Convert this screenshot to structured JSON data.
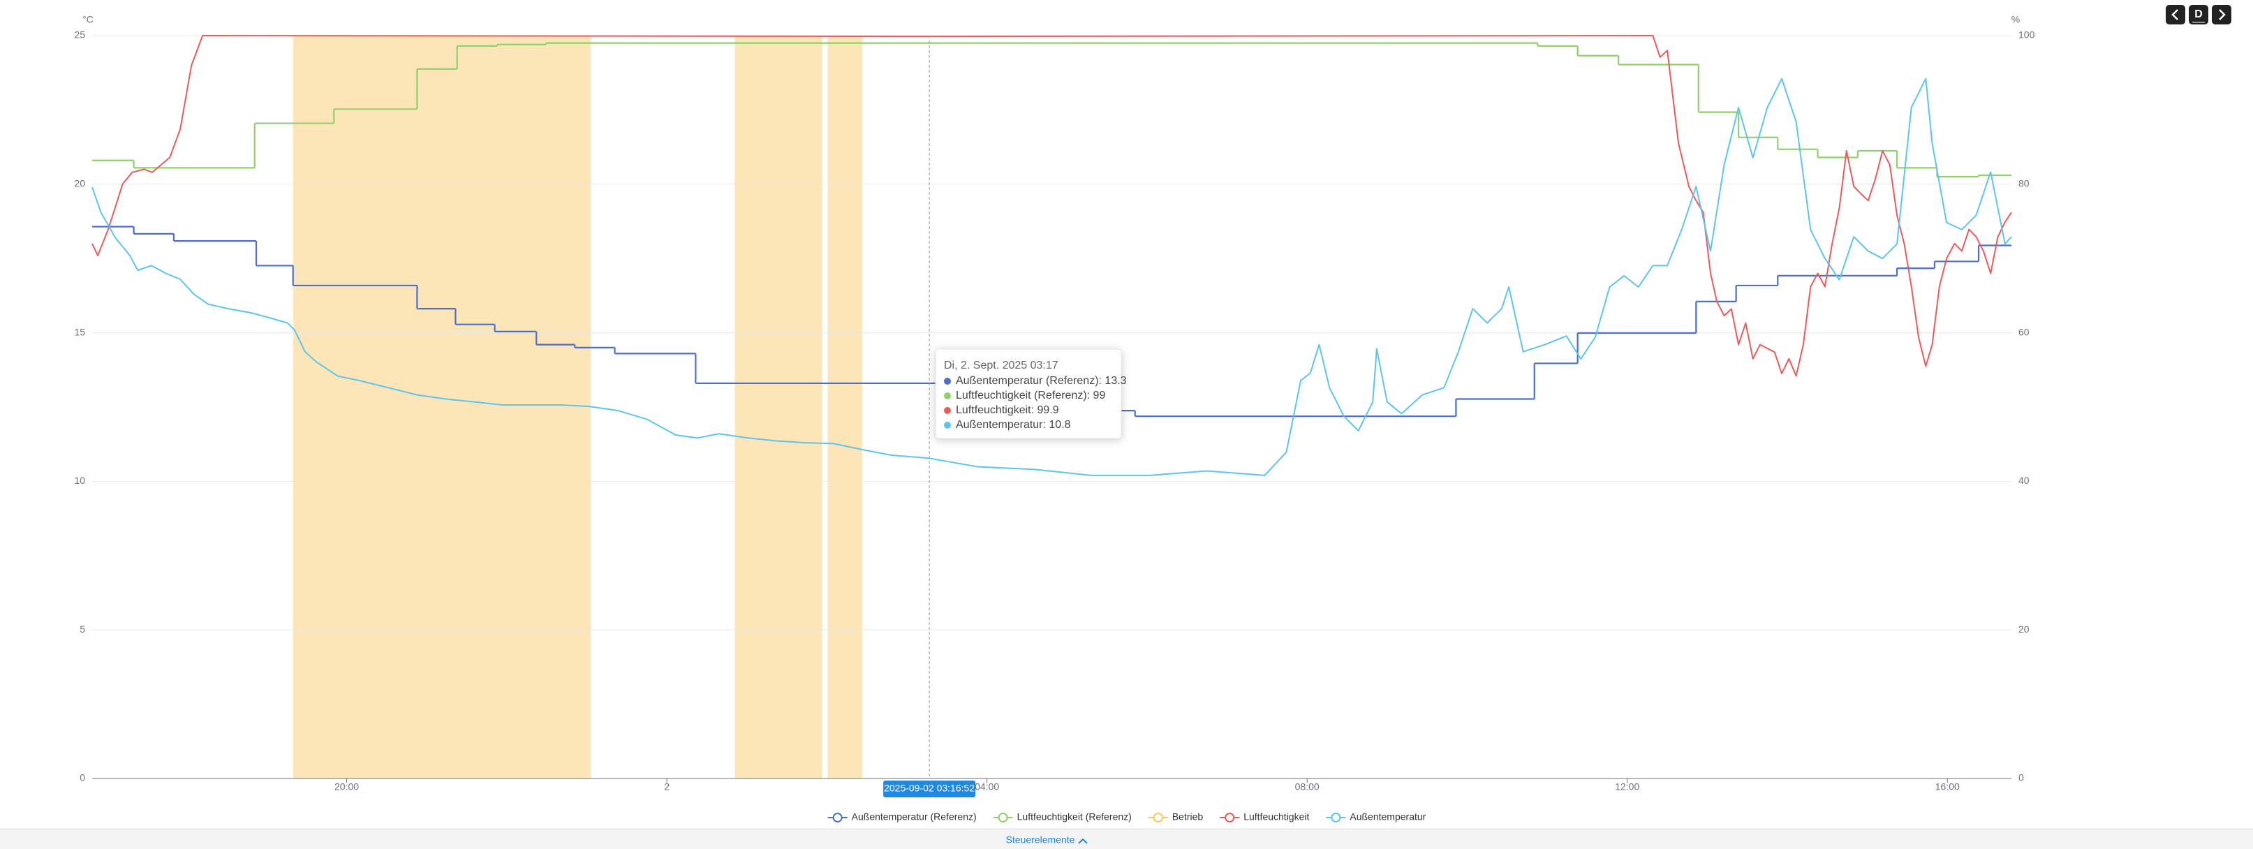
{
  "chart_data": {
    "type": "line",
    "y_unit": "°C",
    "y2_unit": "%",
    "xlim": [
      16.82,
      40.8
    ],
    "xticks": [
      {
        "value": 20,
        "label": "20:00"
      },
      {
        "value": 24,
        "label": "2"
      },
      {
        "value": 28,
        "label": "04:00"
      },
      {
        "value": 32,
        "label": "08:00"
      },
      {
        "value": 36,
        "label": "12:00"
      },
      {
        "value": 40,
        "label": "16:00"
      }
    ],
    "ylim": [
      0,
      25
    ],
    "yticks": [
      0,
      5,
      10,
      15,
      20,
      25
    ],
    "y2lim": [
      0,
      100
    ],
    "y2ticks": [
      0,
      20,
      40,
      60,
      80,
      100
    ],
    "grid": true,
    "series": [
      {
        "name": "Außentemperatur (Referenz)",
        "color": "#4a6fd0",
        "axis": "y",
        "step": true,
        "x": [
          16.82,
          17.34,
          17.84,
          18.87,
          19.33,
          20.88,
          21.36,
          21.85,
          22.37,
          22.85,
          23.35,
          24.36,
          29.5,
          29.85,
          33.86,
          34.84,
          35.38,
          36.86,
          37.36,
          37.88,
          39.37,
          39.84,
          40.39,
          40.8
        ],
        "values": [
          18.57,
          18.33,
          18.09,
          17.26,
          16.59,
          15.81,
          15.28,
          15.04,
          14.6,
          14.5,
          14.3,
          13.3,
          12.38,
          12.19,
          12.77,
          13.97,
          14.99,
          16.05,
          16.59,
          16.92,
          17.17,
          17.4,
          17.94,
          17.94
        ]
      },
      {
        "name": "Luftfeuchtigkeit (Referenz)",
        "color": "#8fd16a",
        "axis": "y2",
        "step": true,
        "x": [
          16.82,
          17.34,
          18.85,
          19.84,
          20.88,
          21.38,
          21.88,
          22.49,
          34.88,
          35.38,
          35.89,
          36.89,
          37.39,
          37.88,
          38.38,
          38.88,
          39.37,
          39.87,
          40.39,
          40.8
        ],
        "values": [
          83.2,
          82.2,
          88.2,
          90.1,
          95.5,
          98.6,
          98.8,
          99,
          98.6,
          97.3,
          96.1,
          89.7,
          86.3,
          84.7,
          83.6,
          84.5,
          82.2,
          81,
          81.2,
          81.2
        ]
      },
      {
        "name": "Betrieb",
        "color": "#fac858",
        "band_color": "#fce6b8",
        "bands": [
          [
            19.33,
            23.05
          ],
          [
            24.85,
            25.94
          ],
          [
            26.01,
            26.44
          ]
        ]
      },
      {
        "name": "Luftfeuchtigkeit",
        "color": "#ee5a5a",
        "axis": "y2",
        "x": [
          16.82,
          16.89,
          17.02,
          17.2,
          17.32,
          17.47,
          17.57,
          17.68,
          17.79,
          17.92,
          18.06,
          18.2,
          27.28,
          36.32,
          36.41,
          36.5,
          36.64,
          36.77,
          36.86,
          36.95,
          37.04,
          37.12,
          37.21,
          37.3,
          37.39,
          37.48,
          37.57,
          37.66,
          37.84,
          37.93,
          38.02,
          38.11,
          38.2,
          38.29,
          38.38,
          38.47,
          38.56,
          38.65,
          38.74,
          38.83,
          38.92,
          39.01,
          39.1,
          39.19,
          39.28,
          39.37,
          39.46,
          39.55,
          39.64,
          39.73,
          39.81,
          39.9,
          39.99,
          40.09,
          40.18,
          40.27,
          40.36,
          40.45,
          40.54,
          40.63,
          40.72,
          40.8
        ],
        "values": [
          72,
          70.4,
          73.9,
          80,
          81.6,
          82,
          81.6,
          82.6,
          83.6,
          87.4,
          96,
          100,
          99.9,
          100,
          97.1,
          98,
          85.5,
          79.7,
          77.8,
          76.2,
          68,
          64.2,
          62.3,
          63.2,
          58.4,
          61.3,
          56.5,
          58.4,
          57.4,
          54.5,
          56.5,
          54.2,
          58.4,
          66.2,
          68,
          66.2,
          72,
          76.8,
          84.5,
          79.7,
          78.7,
          77.8,
          80.7,
          84.5,
          82.6,
          75.8,
          72,
          66.2,
          59.4,
          55.5,
          58.4,
          66.2,
          70,
          72,
          71,
          73.9,
          72.9,
          71,
          68,
          72.9,
          74.9,
          76.2
        ]
      },
      {
        "name": "Außentemperatur",
        "color": "#5bc4ef",
        "axis": "y",
        "x": [
          16.82,
          16.93,
          17.11,
          17.29,
          17.39,
          17.56,
          17.74,
          17.92,
          18.09,
          18.27,
          18.54,
          18.81,
          19.08,
          19.26,
          19.35,
          19.48,
          19.62,
          19.89,
          20.16,
          20.52,
          20.88,
          21.24,
          21.6,
          21.95,
          22.31,
          22.67,
          23.03,
          23.39,
          23.75,
          24.11,
          24.38,
          24.65,
          25.01,
          25.37,
          25.72,
          26.08,
          26.44,
          26.8,
          27.27,
          27.88,
          28.6,
          29.3,
          30.03,
          30.75,
          31.47,
          31.74,
          31.92,
          32.04,
          32.15,
          32.28,
          32.46,
          32.64,
          32.82,
          32.87,
          33.0,
          33.18,
          33.44,
          33.71,
          33.89,
          34.07,
          34.25,
          34.43,
          34.52,
          34.7,
          34.97,
          35.24,
          35.42,
          35.6,
          35.78,
          35.96,
          36.14,
          36.32,
          36.5,
          36.68,
          36.86,
          37.04,
          37.21,
          37.39,
          37.57,
          37.75,
          37.93,
          38.11,
          38.29,
          38.47,
          38.65,
          38.83,
          39.01,
          39.19,
          39.37,
          39.55,
          39.73,
          39.81,
          39.99,
          40.18,
          40.36,
          40.54,
          40.72,
          40.8
        ],
        "values": [
          19.9,
          19.05,
          18.2,
          17.6,
          17.1,
          17.26,
          17.0,
          16.8,
          16.3,
          15.96,
          15.8,
          15.67,
          15.47,
          15.33,
          15.09,
          14.36,
          14.02,
          13.54,
          13.39,
          13.15,
          12.91,
          12.77,
          12.67,
          12.57,
          12.57,
          12.57,
          12.52,
          12.38,
          12.09,
          11.56,
          11.46,
          11.6,
          11.46,
          11.36,
          11.3,
          11.27,
          11.07,
          10.88,
          10.78,
          10.49,
          10.4,
          10.2,
          10.2,
          10.35,
          10.2,
          10.98,
          13.39,
          13.64,
          14.6,
          13.15,
          12.19,
          11.7,
          12.67,
          14.46,
          12.67,
          12.28,
          12.91,
          13.15,
          14.36,
          15.81,
          15.33,
          15.81,
          16.54,
          14.36,
          14.6,
          14.89,
          14.12,
          14.85,
          16.54,
          16.92,
          16.54,
          17.26,
          17.26,
          18.47,
          19.92,
          17.75,
          20.65,
          22.58,
          20.89,
          22.58,
          23.55,
          22.1,
          18.47,
          17.5,
          16.78,
          18.23,
          17.75,
          17.5,
          17.99,
          22.58,
          23.55,
          21.37,
          18.71,
          18.47,
          18.96,
          20.41,
          17.99,
          18.23
        ]
      }
    ],
    "crosshair": {
      "x": 27.28,
      "label": "2025-09-02 03:16:52"
    },
    "tooltip": {
      "title": "Di, 2. Sept. 2025 03:17",
      "items": [
        {
          "text": "Außentemperatur (Referenz): 13.3",
          "color": "#4a6fd0"
        },
        {
          "text": "Luftfeuchtigkeit (Referenz): 99",
          "color": "#8fd16a"
        },
        {
          "text": "Luftfeuchtigkeit: 99.9",
          "color": "#ee5a5a"
        },
        {
          "text": "Außentemperatur: 10.8",
          "color": "#5bc4ef"
        }
      ]
    }
  },
  "controls": {
    "range": "D",
    "footer": "Steuerelemente"
  }
}
